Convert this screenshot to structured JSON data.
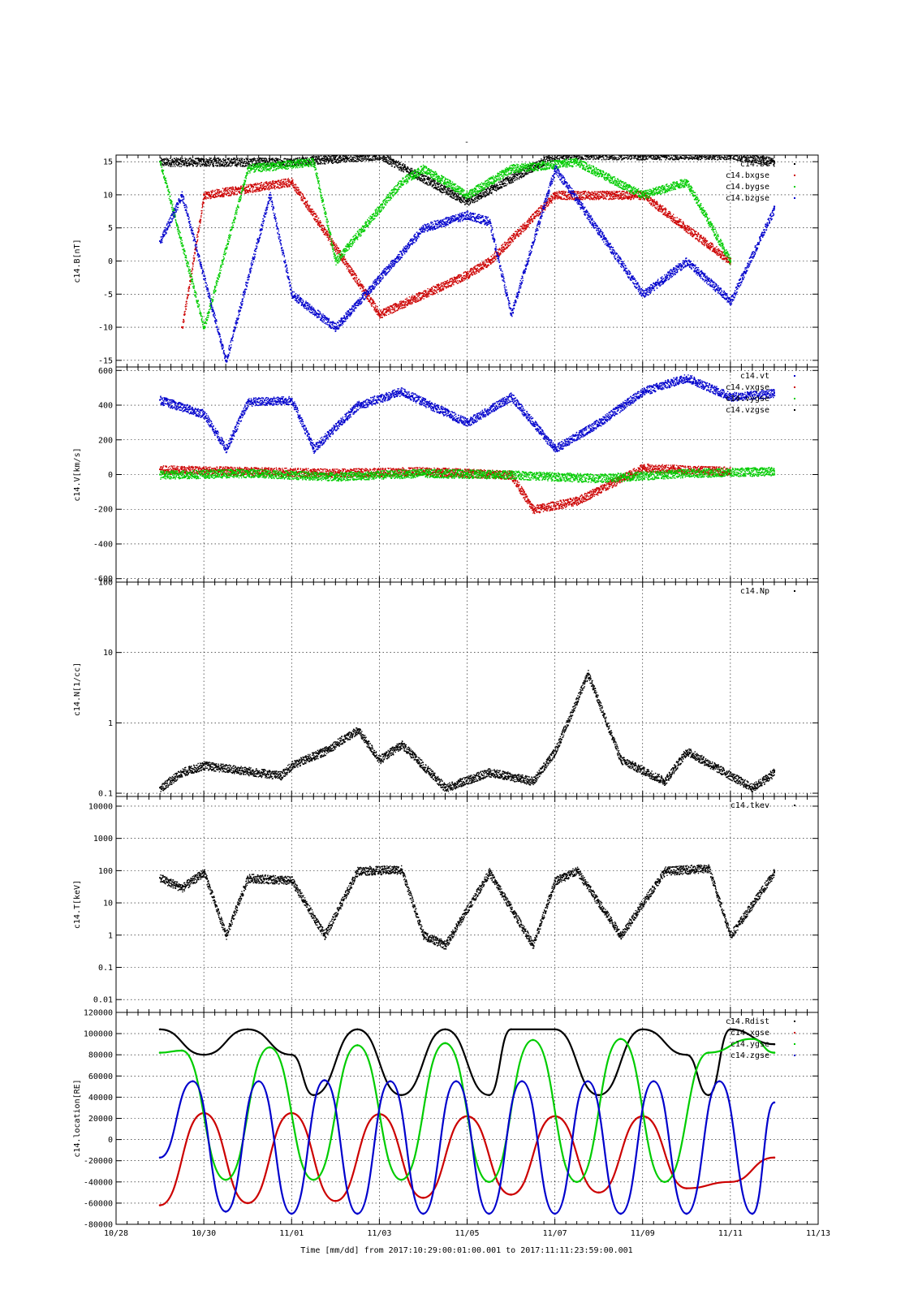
{
  "colors": {
    "black": "#000000",
    "red": "#cc0000",
    "green": "#00cc00",
    "blue": "#0000cc"
  },
  "chart_data": {
    "title": "-",
    "xlabel": "Time [mm/dd]  from 2017:10:29:00:01:00.001  to  2017:11:11:23:59:00.001",
    "x_ticks": [
      "10/28",
      "10/30",
      "11/01",
      "11/03",
      "11/05",
      "11/07",
      "11/09",
      "11/11",
      "11/13"
    ],
    "xlim": [
      "10/28",
      "11/13"
    ],
    "grid": true,
    "panels": [
      {
        "type": "scatter",
        "ylabel": "c14.B[nT]",
        "ylim": [
          -16,
          16
        ],
        "y_scale": "linear",
        "y_ticks": [
          "15",
          "10",
          "5",
          "0",
          "-5",
          "-10",
          "-15"
        ],
        "legend": [
          "c14.bt",
          "c14.bxgse",
          "c14.bygse",
          "c14.bzgse"
        ],
        "legend_placement": "top-right",
        "series": [
          {
            "name": "c14.bt",
            "color": "black",
            "x": [
              "10/29 00:00",
              "10/30 00:00",
              "11/01 00:00",
              "11/03 00:00",
              "11/05 00:00",
              "11/07 00:00",
              "11/09 00:00",
              "11/11 00:00",
              "11/11 24:00"
            ],
            "y": [
              15,
              15,
              15,
              16,
              9,
              16,
              16,
              16,
              15
            ]
          },
          {
            "name": "c14.bxgse",
            "color": "red",
            "x": [
              "10/29 12:00",
              "10/30 00:00",
              "11/01 00:00",
              "11/03 00:00",
              "11/05 00:00",
              "11/05 12:00",
              "11/07 00:00",
              "11/09 00:00",
              "11/11 00:00"
            ],
            "y": [
              -10,
              10,
              12,
              -8,
              -2,
              0,
              10,
              10,
              0
            ]
          },
          {
            "name": "c14.bygse",
            "color": "green",
            "x": [
              "10/29 00:00",
              "10/30 00:00",
              "10/31 00:00",
              "11/01 12:00",
              "11/02 00:00",
              "11/03 12:00",
              "11/04 00:00",
              "11/05 00:00",
              "11/06 00:00",
              "11/07 12:00",
              "11/09 00:00",
              "11/10 00:00",
              "11/11 00:00"
            ],
            "y": [
              15,
              -10,
              14,
              15,
              0,
              12,
              14,
              10,
              14,
              15,
              10,
              12,
              0
            ]
          },
          {
            "name": "c14.bzgse",
            "color": "blue",
            "x": [
              "10/29 00:00",
              "10/29 12:00",
              "10/30 12:00",
              "10/31 12:00",
              "11/01 00:00",
              "11/02 00:00",
              "11/04 00:00",
              "11/05 00:00",
              "11/05 12:00",
              "11/06 00:00",
              "11/07 00:00",
              "11/09 00:00",
              "11/10 00:00",
              "11/11 00:00",
              "11/11 24:00"
            ],
            "y": [
              3,
              10,
              -15,
              10,
              -5,
              -10,
              5,
              7,
              6,
              -8,
              14,
              -5,
              0,
              -6,
              8
            ]
          }
        ]
      },
      {
        "type": "scatter",
        "ylabel": "c14.V[km/s]",
        "ylim": [
          -620,
          620
        ],
        "y_scale": "linear",
        "y_ticks": [
          "600",
          "400",
          "200",
          "0",
          "-200",
          "-400",
          "-600"
        ],
        "legend": [
          "c14.vt",
          "c14.vxgse",
          "c14.vygse",
          "c14.vzgse"
        ],
        "legend_placement": "top-right",
        "series": [
          {
            "name": "c14.vt",
            "color": "blue",
            "x": [
              "10/29 00:00",
              "10/30 00:00",
              "10/30 12:00",
              "10/31 00:00",
              "11/01 00:00",
              "11/01 12:00",
              "11/02 12:00",
              "11/03 12:00",
              "11/05 00:00",
              "11/06 00:00",
              "11/07 00:00",
              "11/08 00:00",
              "11/09 00:00",
              "11/10 00:00",
              "11/11 00:00",
              "11/11 24:00"
            ],
            "y": [
              430,
              350,
              150,
              420,
              430,
              150,
              400,
              480,
              300,
              450,
              150,
              300,
              480,
              560,
              450,
              470
            ]
          },
          {
            "name": "c14.vxgse",
            "color": "red",
            "x": [
              "10/29 00:00",
              "10/31 00:00",
              "11/02 00:00",
              "11/04 00:00",
              "11/06 00:00",
              "11/06 12:00",
              "11/07 12:00",
              "11/09 00:00",
              "11/11 00:00"
            ],
            "y": [
              30,
              20,
              10,
              20,
              0,
              -200,
              -150,
              40,
              20
            ]
          },
          {
            "name": "c14.vygse",
            "color": "green",
            "x": [
              "10/29 00:00",
              "10/31 00:00",
              "11/02 00:00",
              "11/04 00:00",
              "11/06 00:00",
              "11/08 00:00",
              "11/10 00:00",
              "11/11 24:00"
            ],
            "y": [
              0,
              10,
              -10,
              10,
              0,
              -20,
              10,
              20
            ]
          }
        ]
      },
      {
        "type": "scatter",
        "ylabel": "c14.N[1/cc]",
        "ylim": [
          0.09,
          100
        ],
        "y_scale": "log",
        "y_ticks": [
          "100",
          "10",
          "1",
          "0.1"
        ],
        "legend": [
          "c14.Np"
        ],
        "legend_placement": "top-right",
        "series": [
          {
            "name": "c14.Np",
            "color": "black",
            "x": [
              "10/29 00:00",
              "10/29 12:00",
              "10/30 00:00",
              "10/31 18:00",
              "11/01 00:00",
              "11/01 18:00",
              "11/02 12:00",
              "11/03 00:00",
              "11/03 12:00",
              "11/04 12:00",
              "11/05 12:00",
              "11/06 12:00",
              "11/07 00:00",
              "11/07 18:00",
              "11/08 12:00",
              "11/09 12:00",
              "11/10 00:00",
              "11/11 12:00",
              "11/11 24:00"
            ],
            "y": [
              0.12,
              0.2,
              0.25,
              0.18,
              0.25,
              0.4,
              0.8,
              0.3,
              0.5,
              0.12,
              0.2,
              0.15,
              0.4,
              5,
              0.3,
              0.15,
              0.4,
              0.12,
              0.2
            ]
          }
        ]
      },
      {
        "type": "scatter",
        "ylabel": "c14.T[keV]",
        "ylim": [
          0.004,
          20000
        ],
        "y_scale": "log",
        "y_ticks": [
          "10000",
          "1000",
          "100",
          "10",
          "1",
          "0.1",
          "0.01"
        ],
        "legend": [
          "c14.tkev"
        ],
        "legend_placement": "top-right",
        "series": [
          {
            "name": "c14.tkev",
            "color": "black",
            "x": [
              "10/29 00:00",
              "10/29 12:00",
              "10/30 00:00",
              "10/30 12:00",
              "10/31 00:00",
              "11/01 00:00",
              "11/01 18:00",
              "11/02 12:00",
              "11/03 12:00",
              "11/04 00:00",
              "11/04 12:00",
              "11/05 12:00",
              "11/06 12:00",
              "11/07 00:00",
              "11/07 12:00",
              "11/08 12:00",
              "11/09 12:00",
              "11/10 12:00",
              "11/11 00:00",
              "11/11 24:00"
            ],
            "y": [
              60,
              30,
              90,
              1,
              60,
              50,
              1,
              100,
              110,
              1,
              0.5,
              90,
              0.5,
              50,
              100,
              1,
              100,
              120,
              1,
              90
            ]
          }
        ]
      },
      {
        "type": "line",
        "ylabel": "c14.location[RE]",
        "ylim": [
          -80000,
          120000
        ],
        "y_scale": "linear",
        "y_ticks": [
          "120000",
          "100000",
          "80000",
          "60000",
          "40000",
          "20000",
          "0",
          "-20000",
          "-40000",
          "-60000",
          "-80000"
        ],
        "legend": [
          "c14.Rdist",
          "c14.xgse",
          "c14.ygse",
          "c14.zgse"
        ],
        "legend_placement": "top-right",
        "series": [
          {
            "name": "c14.Rdist",
            "color": "black",
            "x": [
              "10/29 00:00",
              "10/30 00:00",
              "10/31 00:00",
              "11/01 00:00",
              "11/01 12:00",
              "11/02 12:00",
              "11/03 12:00",
              "11/04 12:00",
              "11/05 12:00",
              "11/06 00:00",
              "11/07 00:00",
              "11/08 00:00",
              "11/09 00:00",
              "11/10 00:00",
              "11/10 12:00",
              "11/11 00:00",
              "11/11 24:00"
            ],
            "y": [
              104000,
              80000,
              104000,
              80000,
              42000,
              104000,
              42000,
              104000,
              42000,
              104000,
              104000,
              42000,
              104000,
              80000,
              42000,
              104000,
              90000
            ]
          },
          {
            "name": "c14.xgse",
            "color": "red",
            "x": [
              "10/29 00:00",
              "10/30 00:00",
              "10/31 00:00",
              "11/01 00:00",
              "11/02 00:00",
              "11/03 00:00",
              "11/04 00:00",
              "11/05 00:00",
              "11/06 00:00",
              "11/07 00:00",
              "11/08 00:00",
              "11/09 00:00",
              "11/10 00:00",
              "11/11 00:00",
              "11/11 24:00"
            ],
            "y": [
              -62000,
              25000,
              -60000,
              25000,
              -58000,
              24000,
              -55000,
              22000,
              -52000,
              22000,
              -50000,
              22000,
              -46000,
              -40000,
              -17000
            ]
          },
          {
            "name": "c14.ygse",
            "color": "green",
            "x": [
              "10/29 00:00",
              "10/29 12:00",
              "10/30 12:00",
              "10/31 12:00",
              "11/01 12:00",
              "11/02 12:00",
              "11/03 12:00",
              "11/04 12:00",
              "11/05 12:00",
              "11/06 12:00",
              "11/07 12:00",
              "11/08 12:00",
              "11/09 12:00",
              "11/10 12:00",
              "11/11 12:00",
              "11/11 24:00"
            ],
            "y": [
              82000,
              84000,
              -38000,
              87000,
              -38000,
              89000,
              -38000,
              91000,
              -40000,
              94000,
              -40000,
              95000,
              -40000,
              82000,
              95000,
              82000
            ]
          },
          {
            "name": "c14.zgse",
            "color": "blue",
            "x": [
              "10/29 00:00",
              "10/29 18:00",
              "10/30 12:00",
              "10/31 06:00",
              "11/01 00:00",
              "11/01 18:00",
              "11/02 12:00",
              "11/03 06:00",
              "11/04 00:00",
              "11/04 18:00",
              "11/05 12:00",
              "11/06 06:00",
              "11/07 00:00",
              "11/07 18:00",
              "11/08 12:00",
              "11/09 06:00",
              "11/10 00:00",
              "11/10 18:00",
              "11/11 12:00",
              "11/11 24:00"
            ],
            "y": [
              -17000,
              55000,
              -68000,
              55000,
              -70000,
              56000,
              -70000,
              55000,
              -70000,
              55000,
              -70000,
              55000,
              -70000,
              55000,
              -70000,
              55000,
              -70000,
              55000,
              -70000,
              35000
            ]
          }
        ]
      }
    ]
  }
}
